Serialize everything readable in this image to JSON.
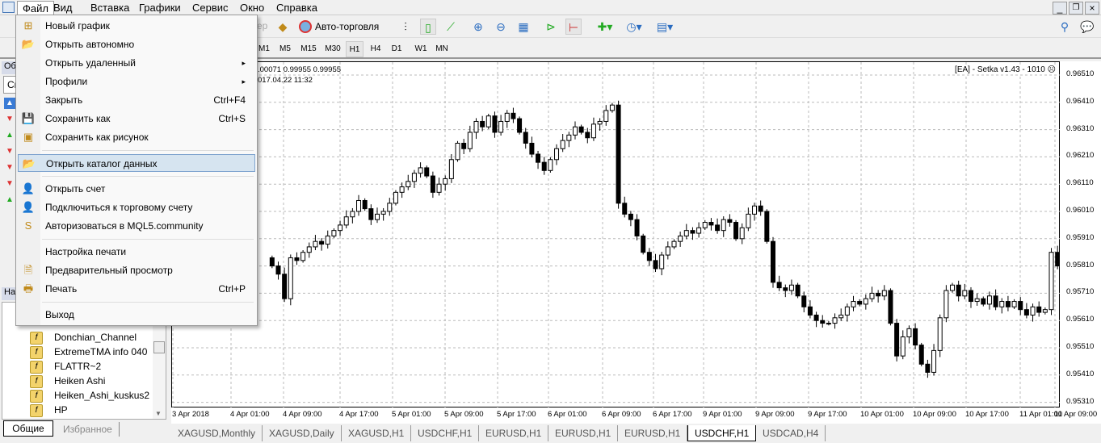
{
  "menubar": {
    "items": [
      "Файл",
      "Вид",
      "Вставка",
      "Графики",
      "Сервис",
      "Окно",
      "Справка"
    ]
  },
  "toolbar": {
    "autotrade_label": "Авто-торговля",
    "hidden_fragment": "ер"
  },
  "timeframes": [
    "M1",
    "M5",
    "M15",
    "M30",
    "H1",
    "H4",
    "D1",
    "W1",
    "MN"
  ],
  "selected_timeframe": "H1",
  "file_menu": [
    {
      "label": "Новый график",
      "shortcut": "",
      "icon": "new-chart-icon",
      "glyph": "⊞"
    },
    {
      "label": "Открыть автономно",
      "shortcut": "",
      "icon": "open-folder-icon",
      "glyph": "📂"
    },
    {
      "label": "Открыть удаленный",
      "shortcut": "",
      "icon": "",
      "glyph": "",
      "submenu": "▸"
    },
    {
      "label": "Профили",
      "shortcut": "",
      "icon": "",
      "glyph": "",
      "submenu": "▸"
    },
    {
      "label": "Закрыть",
      "shortcut": "Ctrl+F4",
      "icon": "",
      "glyph": ""
    },
    {
      "label": "Сохранить как",
      "shortcut": "Ctrl+S",
      "icon": "save-icon",
      "glyph": "💾"
    },
    {
      "label": "Сохранить как рисунок",
      "shortcut": "",
      "icon": "save-picture-icon",
      "glyph": "▣"
    },
    {
      "label": "Открыть каталог данных",
      "shortcut": "",
      "icon": "folder-icon",
      "glyph": "📂"
    },
    {
      "label": "Открыть счет",
      "shortcut": "",
      "icon": "open-account-icon",
      "glyph": "👤"
    },
    {
      "label": "Подключиться к торговому счету",
      "shortcut": "",
      "icon": "connect-account-icon",
      "glyph": "👤"
    },
    {
      "label": "Авторизоваться в MQL5.community",
      "shortcut": "",
      "icon": "mql5-icon",
      "glyph": "S"
    },
    {
      "label": "Настройка печати",
      "shortcut": "",
      "icon": "",
      "glyph": ""
    },
    {
      "label": "Предварительный просмотр",
      "shortcut": "",
      "icon": "print-preview-icon",
      "glyph": "🗎"
    },
    {
      "label": "Печать",
      "shortcut": "Ctrl+P",
      "icon": "print-icon",
      "glyph": "🖶"
    },
    {
      "label": "Выход",
      "shortcut": "",
      "icon": "",
      "glyph": ""
    }
  ],
  "left_panel": {
    "market_watch_title": "Об",
    "market_tab": "Си",
    "navigator_title": "Нав",
    "indicators": [
      "Donchian_Channel",
      "ExtremeTMA info 040",
      "FLATTR~2",
      "Heiken Ashi",
      "Heiken_Ashi_kuskus2",
      "HP"
    ],
    "tabs": [
      "Общие",
      "Избранное"
    ],
    "market_rows": [
      "up",
      "down",
      "up",
      "down",
      "down",
      "down",
      "up"
    ]
  },
  "chart": {
    "info_line1": ".00071 0.99955 0.99955",
    "info_line2": "017.04.22 11:32",
    "ea_label": "[EA] - Setka v1.43 - 1010",
    "ea_status_icon": "sad-face-icon",
    "y_labels": [
      "0.96510",
      "0.96410",
      "0.96310",
      "0.96210",
      "0.96110",
      "0.96010",
      "0.95910",
      "0.95810",
      "0.95710",
      "0.95610",
      "0.95510",
      "0.95410",
      "0.95310"
    ],
    "x_labels": [
      "3 Apr 2018",
      "4 Apr 01:00",
      "4 Apr 09:00",
      "4 Apr 17:00",
      "5 Apr 01:00",
      "5 Apr 09:00",
      "5 Apr 17:00",
      "6 Apr 01:00",
      "6 Apr 09:00",
      "6 Apr 17:00",
      "9 Apr 01:00",
      "9 Apr 09:00",
      "9 Apr 17:00",
      "10 Apr 01:00",
      "10 Apr 09:00",
      "10 Apr 17:00",
      "11 Apr 01:00",
      "11 Apr 09:00"
    ],
    "closes": [
      0.9581,
      0.9578,
      0.9569,
      0.9584,
      0.9583,
      0.9586,
      0.9588,
      0.959,
      0.9589,
      0.9592,
      0.9594,
      0.9596,
      0.9599,
      0.9601,
      0.9605,
      0.9602,
      0.9598,
      0.96,
      0.9601,
      0.9604,
      0.9608,
      0.961,
      0.9612,
      0.9615,
      0.9617,
      0.9614,
      0.9608,
      0.9611,
      0.9613,
      0.962,
      0.9626,
      0.9624,
      0.963,
      0.9634,
      0.9632,
      0.9636,
      0.963,
      0.9634,
      0.9637,
      0.9635,
      0.963,
      0.9626,
      0.9622,
      0.9619,
      0.9616,
      0.962,
      0.9624,
      0.9627,
      0.9629,
      0.9632,
      0.963,
      0.9628,
      0.9633,
      0.9634,
      0.9638,
      0.964,
      0.9604,
      0.96,
      0.9598,
      0.9592,
      0.9586,
      0.9583,
      0.958,
      0.9585,
      0.9588,
      0.959,
      0.9592,
      0.9594,
      0.9593,
      0.9595,
      0.9597,
      0.9596,
      0.9594,
      0.9598,
      0.9597,
      0.9591,
      0.9595,
      0.96,
      0.9603,
      0.9601,
      0.959,
      0.9575,
      0.9573,
      0.9572,
      0.9574,
      0.957,
      0.9566,
      0.9563,
      0.9561,
      0.956,
      0.956,
      0.9562,
      0.9563,
      0.9566,
      0.9568,
      0.9567,
      0.9569,
      0.9571,
      0.957,
      0.9572,
      0.956,
      0.9548,
      0.9555,
      0.9558,
      0.9552,
      0.9545,
      0.9542,
      0.955,
      0.9562,
      0.9572,
      0.9574,
      0.957,
      0.9572,
      0.9568,
      0.9569,
      0.9567,
      0.957,
      0.9566,
      0.9568,
      0.9566,
      0.9568,
      0.9565,
      0.9563,
      0.9566,
      0.9564,
      0.9565,
      0.9586,
      0.9581
    ]
  },
  "chart_tabs": [
    "XAGUSD,Monthly",
    "XAGUSD,Daily",
    "XAGUSD,H1",
    "USDCHF,H1",
    "EURUSD,H1",
    "EURUSD,H1",
    "EURUSD,H1",
    "USDCHF,H1",
    "USDCAD,H4"
  ],
  "selected_chart_tab": 7
}
